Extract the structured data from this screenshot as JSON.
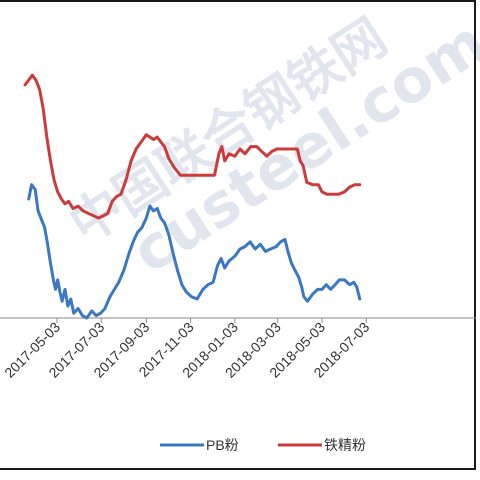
{
  "chart_data": {
    "type": "line",
    "title": "",
    "xlabel": "",
    "ylabel": "",
    "ylim": [
      0,
      100
    ],
    "x_tick_labels": [
      "2017-05-03",
      "2017-07-03",
      "2017-09-03",
      "2017-11-03",
      "2018-01-03",
      "2018-03-03",
      "2018-05-03",
      "2018-07-03"
    ],
    "x_tick_dates": [
      "2017-05-03",
      "2017-07-03",
      "2017-09-03",
      "2017-11-03",
      "2018-01-03",
      "2018-03-03",
      "2018-05-03",
      "2018-07-03"
    ],
    "grid": false,
    "legend_position": "bottom",
    "series": [
      {
        "name": "PB粉",
        "color": "#3a78c3",
        "points": [
          [
            "2017-03-25",
            50
          ],
          [
            "2017-03-29",
            56
          ],
          [
            "2017-04-03",
            54
          ],
          [
            "2017-04-07",
            45
          ],
          [
            "2017-04-12",
            41
          ],
          [
            "2017-04-16",
            38
          ],
          [
            "2017-04-20",
            31
          ],
          [
            "2017-04-24",
            23
          ],
          [
            "2017-04-28",
            16
          ],
          [
            "2017-05-01",
            12
          ],
          [
            "2017-05-04",
            16
          ],
          [
            "2017-05-07",
            11
          ],
          [
            "2017-05-10",
            7
          ],
          [
            "2017-05-14",
            12
          ],
          [
            "2017-05-18",
            5
          ],
          [
            "2017-05-22",
            8
          ],
          [
            "2017-05-26",
            2
          ],
          [
            "2017-06-01",
            4
          ],
          [
            "2017-06-07",
            1
          ],
          [
            "2017-06-13",
            0
          ],
          [
            "2017-06-20",
            3
          ],
          [
            "2017-06-26",
            1
          ],
          [
            "2017-07-02",
            2
          ],
          [
            "2017-07-08",
            4
          ],
          [
            "2017-07-15",
            9
          ],
          [
            "2017-07-21",
            12
          ],
          [
            "2017-07-27",
            15
          ],
          [
            "2017-08-03",
            20
          ],
          [
            "2017-08-10",
            27
          ],
          [
            "2017-08-16",
            32
          ],
          [
            "2017-08-22",
            36
          ],
          [
            "2017-08-28",
            38
          ],
          [
            "2017-09-03",
            42
          ],
          [
            "2017-09-08",
            47
          ],
          [
            "2017-09-13",
            45
          ],
          [
            "2017-09-18",
            46
          ],
          [
            "2017-09-23",
            42
          ],
          [
            "2017-09-28",
            40
          ],
          [
            "2017-10-04",
            35
          ],
          [
            "2017-10-10",
            27
          ],
          [
            "2017-10-16",
            20
          ],
          [
            "2017-10-22",
            14
          ],
          [
            "2017-10-28",
            11
          ],
          [
            "2017-11-04",
            9
          ],
          [
            "2017-11-12",
            8
          ],
          [
            "2017-11-20",
            12
          ],
          [
            "2017-11-27",
            14
          ],
          [
            "2017-12-04",
            15
          ],
          [
            "2017-12-10",
            22
          ],
          [
            "2017-12-15",
            25
          ],
          [
            "2017-12-20",
            21
          ],
          [
            "2017-12-26",
            24
          ],
          [
            "2018-01-03",
            26
          ],
          [
            "2018-01-10",
            29
          ],
          [
            "2018-01-17",
            30
          ],
          [
            "2018-01-24",
            32
          ],
          [
            "2018-01-31",
            29
          ],
          [
            "2018-02-07",
            31
          ],
          [
            "2018-02-14",
            28
          ],
          [
            "2018-02-21",
            29
          ],
          [
            "2018-03-01",
            30
          ],
          [
            "2018-03-07",
            32
          ],
          [
            "2018-03-13",
            33
          ],
          [
            "2018-03-17",
            28
          ],
          [
            "2018-03-22",
            23
          ],
          [
            "2018-03-27",
            20
          ],
          [
            "2018-04-01",
            17
          ],
          [
            "2018-04-05",
            13
          ],
          [
            "2018-04-08",
            9
          ],
          [
            "2018-04-13",
            7
          ],
          [
            "2018-04-20",
            10
          ],
          [
            "2018-04-27",
            12
          ],
          [
            "2018-05-03",
            12
          ],
          [
            "2018-05-09",
            14
          ],
          [
            "2018-05-15",
            12
          ],
          [
            "2018-05-21",
            14
          ],
          [
            "2018-05-27",
            16
          ],
          [
            "2018-06-03",
            16
          ],
          [
            "2018-06-10",
            14
          ],
          [
            "2018-06-16",
            15
          ],
          [
            "2018-06-20",
            13
          ],
          [
            "2018-06-24",
            8
          ]
        ]
      },
      {
        "name": "铁精粉",
        "color": "#cc3a3a",
        "points": [
          [
            "2017-03-20",
            98
          ],
          [
            "2017-03-25",
            100
          ],
          [
            "2017-03-30",
            102
          ],
          [
            "2017-04-04",
            100
          ],
          [
            "2017-04-09",
            96
          ],
          [
            "2017-04-14",
            88
          ],
          [
            "2017-04-19",
            76
          ],
          [
            "2017-04-24",
            66
          ],
          [
            "2017-04-29",
            58
          ],
          [
            "2017-05-04",
            53
          ],
          [
            "2017-05-09",
            50
          ],
          [
            "2017-05-14",
            48
          ],
          [
            "2017-05-19",
            49
          ],
          [
            "2017-05-25",
            46
          ],
          [
            "2017-06-01",
            47
          ],
          [
            "2017-06-08",
            45
          ],
          [
            "2017-06-15",
            44
          ],
          [
            "2017-06-22",
            43
          ],
          [
            "2017-06-29",
            42
          ],
          [
            "2017-07-06",
            43
          ],
          [
            "2017-07-12",
            44
          ],
          [
            "2017-07-18",
            49
          ],
          [
            "2017-07-24",
            51
          ],
          [
            "2017-07-30",
            52
          ],
          [
            "2017-08-06",
            58
          ],
          [
            "2017-08-13",
            66
          ],
          [
            "2017-08-20",
            71
          ],
          [
            "2017-08-27",
            74
          ],
          [
            "2017-09-03",
            77
          ],
          [
            "2017-09-08",
            76
          ],
          [
            "2017-09-13",
            75
          ],
          [
            "2017-09-18",
            76
          ],
          [
            "2017-09-23",
            74
          ],
          [
            "2017-09-28",
            72
          ],
          [
            "2017-10-04",
            67
          ],
          [
            "2017-10-12",
            63
          ],
          [
            "2017-10-20",
            60
          ],
          [
            "2017-10-28",
            60
          ],
          [
            "2017-11-05",
            60
          ],
          [
            "2017-11-13",
            60
          ],
          [
            "2017-11-21",
            60
          ],
          [
            "2017-11-29",
            60
          ],
          [
            "2017-12-06",
            60
          ],
          [
            "2017-12-12",
            69
          ],
          [
            "2017-12-16",
            72
          ],
          [
            "2017-12-20",
            66
          ],
          [
            "2017-12-26",
            69
          ],
          [
            "2018-01-03",
            68
          ],
          [
            "2018-01-10",
            71
          ],
          [
            "2018-01-17",
            69
          ],
          [
            "2018-01-25",
            72
          ],
          [
            "2018-02-02",
            72
          ],
          [
            "2018-02-09",
            70
          ],
          [
            "2018-02-16",
            68
          ],
          [
            "2018-02-23",
            70
          ],
          [
            "2018-03-02",
            71
          ],
          [
            "2018-03-09",
            71
          ],
          [
            "2018-03-16",
            71
          ],
          [
            "2018-03-23",
            71
          ],
          [
            "2018-03-30",
            71
          ],
          [
            "2018-04-03",
            66
          ],
          [
            "2018-04-07",
            64
          ],
          [
            "2018-04-12",
            57
          ],
          [
            "2018-04-20",
            56
          ],
          [
            "2018-04-28",
            56
          ],
          [
            "2018-05-03",
            53
          ],
          [
            "2018-05-10",
            52
          ],
          [
            "2018-05-18",
            52
          ],
          [
            "2018-05-26",
            52
          ],
          [
            "2018-06-03",
            53
          ],
          [
            "2018-06-10",
            55
          ],
          [
            "2018-06-17",
            56
          ],
          [
            "2018-06-24",
            56
          ]
        ]
      }
    ]
  },
  "watermark": {
    "cn": "中国联合钢铁网",
    "en": "custeel.com"
  }
}
